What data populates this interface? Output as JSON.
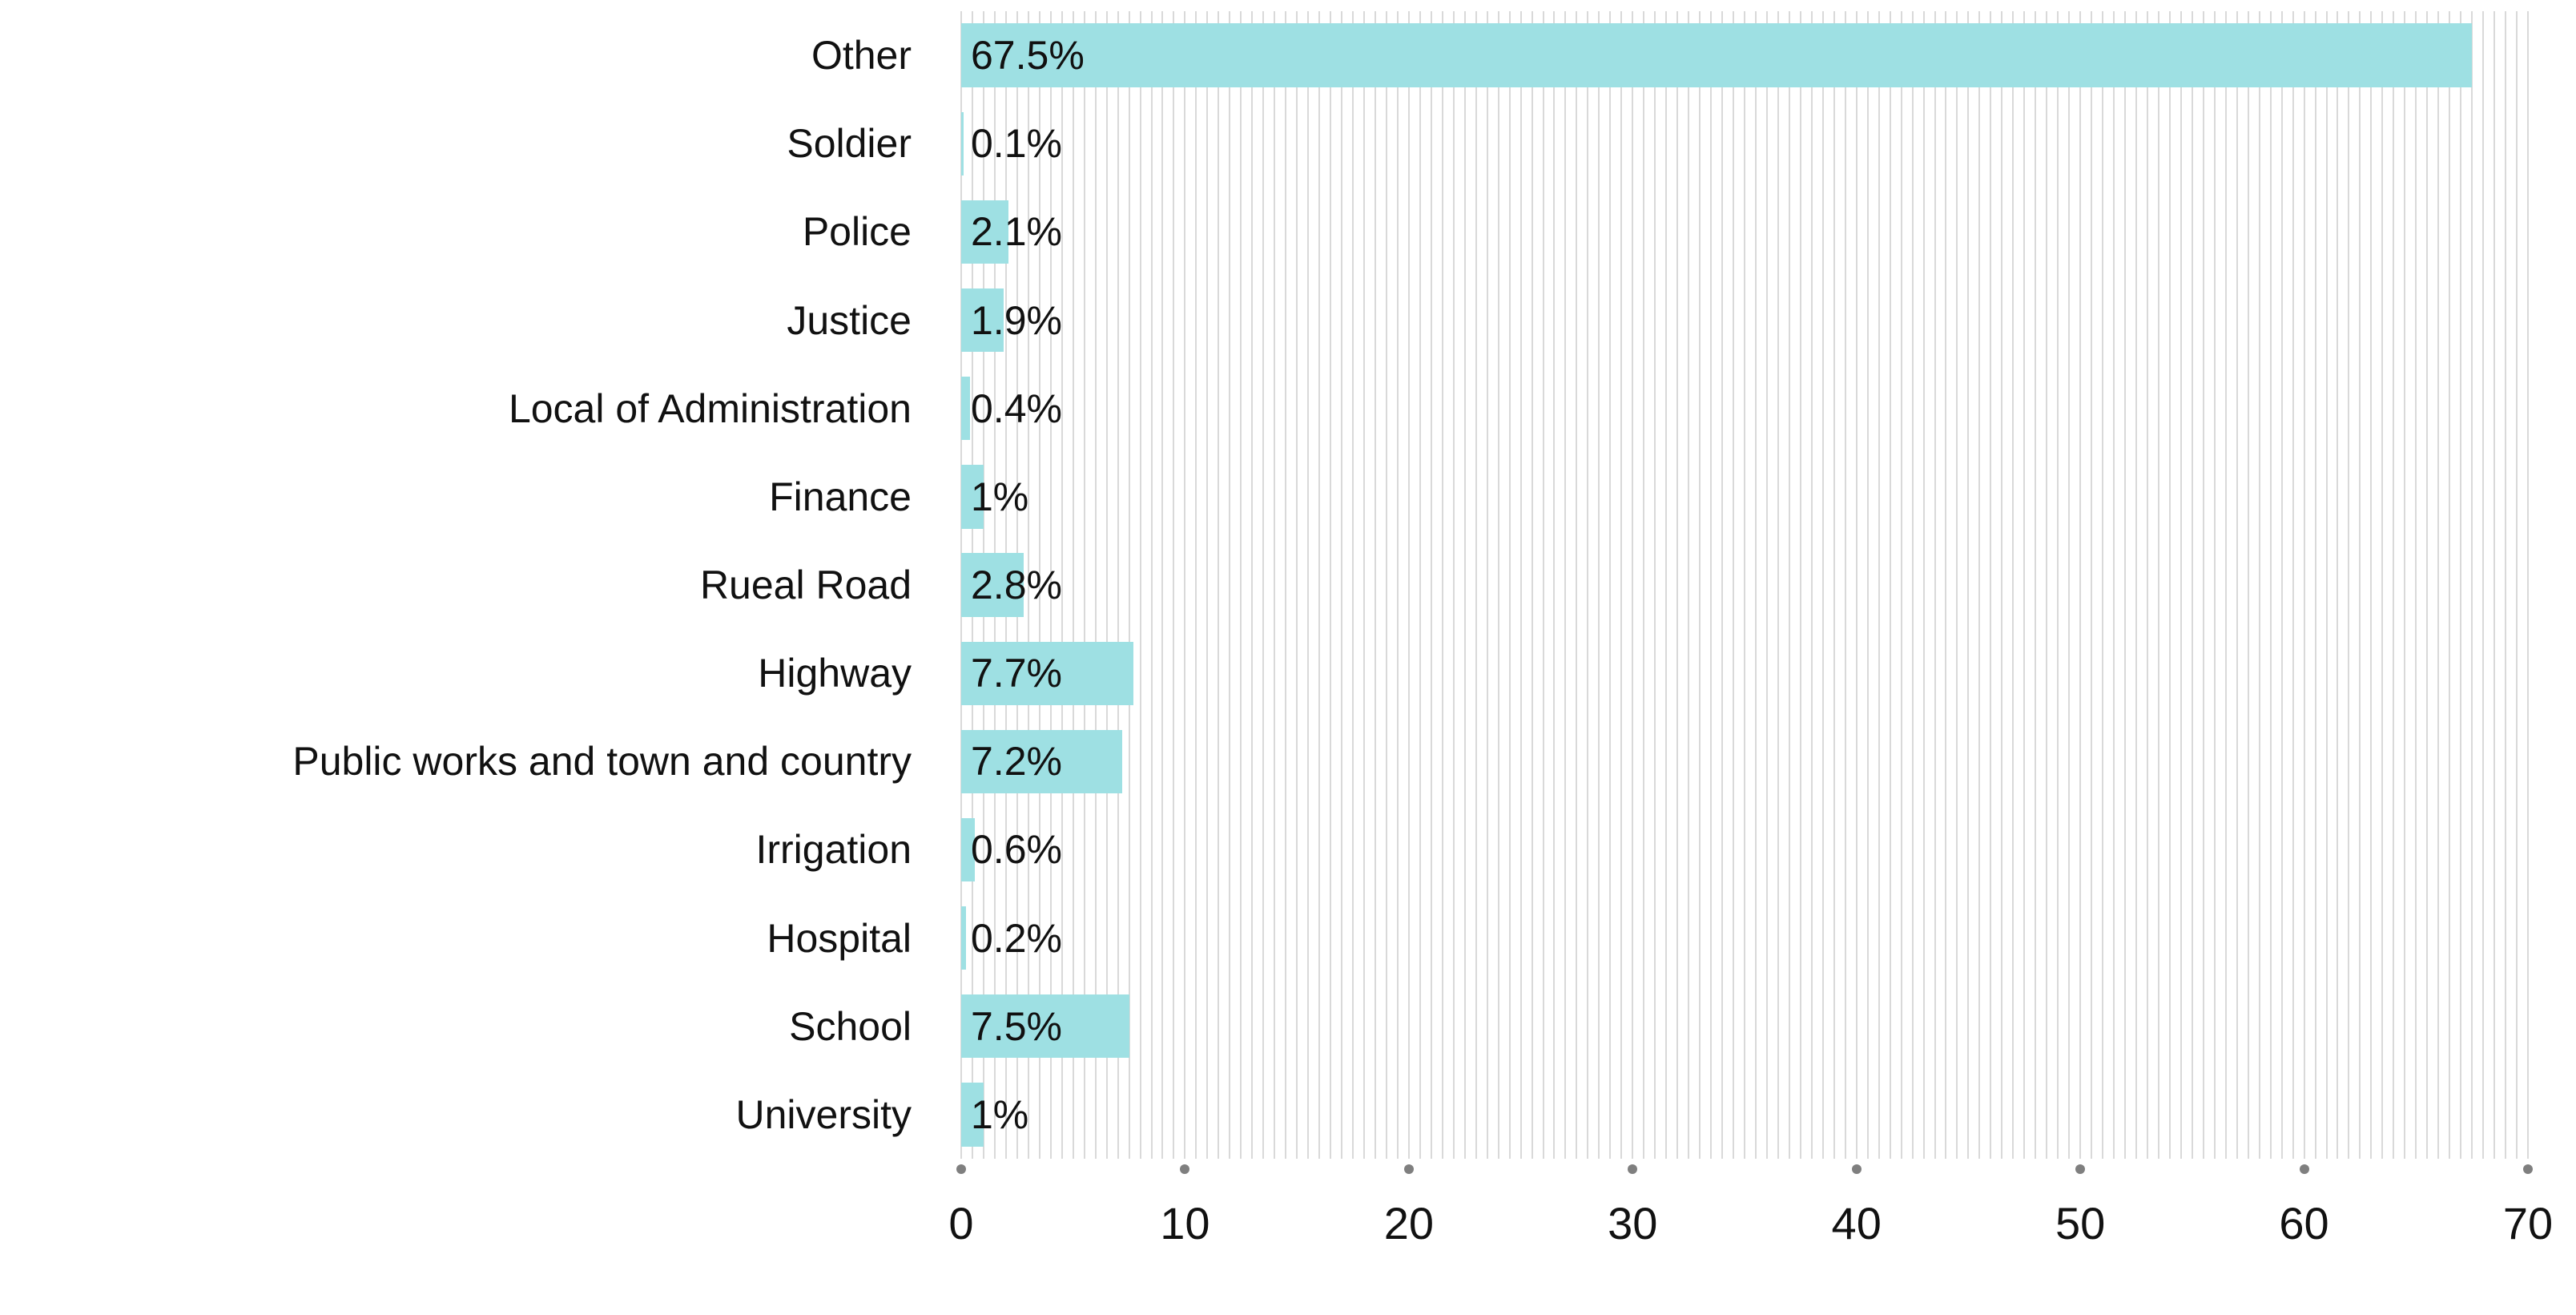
{
  "chart_data": {
    "type": "bar",
    "orientation": "horizontal",
    "title": "",
    "xlabel": "",
    "ylabel": "",
    "categories": [
      "Other",
      "Soldier",
      "Police",
      "Justice",
      "Local of Administration",
      "Finance",
      "Rueal Road",
      "Highway",
      "Public works and town and country",
      "Irrigation",
      "Hospital",
      "School",
      "University"
    ],
    "values": [
      67.5,
      0.1,
      2.1,
      1.9,
      0.4,
      1,
      2.8,
      7.7,
      7.2,
      0.6,
      0.2,
      7.5,
      1
    ],
    "value_labels": [
      "67.5%",
      "0.1%",
      "2.1%",
      "1.9%",
      "0.4%",
      "1%",
      "2.8%",
      "7.7%",
      "7.2%",
      "0.6%",
      "0.2%",
      "7.5%",
      "1%"
    ],
    "xlim": [
      0,
      70
    ],
    "x_ticks": [
      "0",
      "10",
      "20",
      "30",
      "40",
      "50",
      "60",
      "70"
    ],
    "x_tick_values": [
      0,
      10,
      20,
      30,
      40,
      50,
      60,
      70
    ],
    "minor_grid_step": 0.5,
    "grid": "minor-vertical",
    "legend": "none",
    "colors": {
      "bar": "#9ee0e3",
      "gridline": "#d9d9d9",
      "tick_dot": "#7f7f7f",
      "text": "#111111",
      "background": "#ffffff"
    }
  }
}
